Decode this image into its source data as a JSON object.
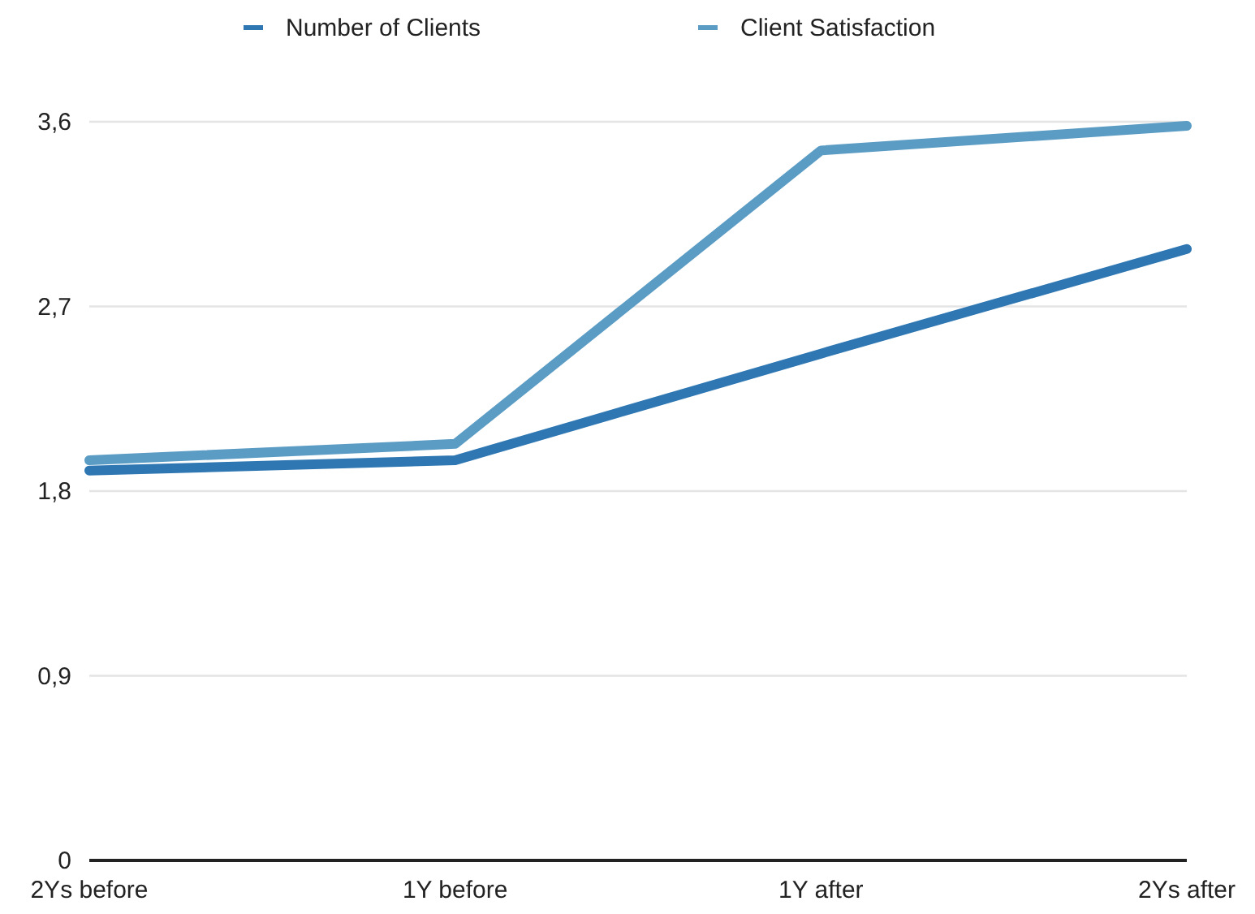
{
  "chart_data": {
    "type": "line",
    "categories": [
      "2Ys before",
      "1Y before",
      "1Y after",
      "2Ys after"
    ],
    "series": [
      {
        "name": "Number of Clients",
        "color": "#2e77b3",
        "values": [
          1.9,
          1.95,
          2.47,
          2.98
        ]
      },
      {
        "name": "Client Satisfaction",
        "color": "#5b9cc5",
        "values": [
          1.95,
          2.03,
          3.46,
          3.58
        ]
      }
    ],
    "ylim": [
      0,
      3.6
    ],
    "yticks": [
      0,
      {
        "value": 0.9,
        "label": "0,9"
      },
      {
        "value": 1.8,
        "label": "1,8"
      },
      {
        "value": 2.7,
        "label": "2,7"
      },
      {
        "value": 3.6,
        "label": "3,6"
      }
    ],
    "grid": "y",
    "legend": "top",
    "marker": "none",
    "line_style": "solid"
  }
}
